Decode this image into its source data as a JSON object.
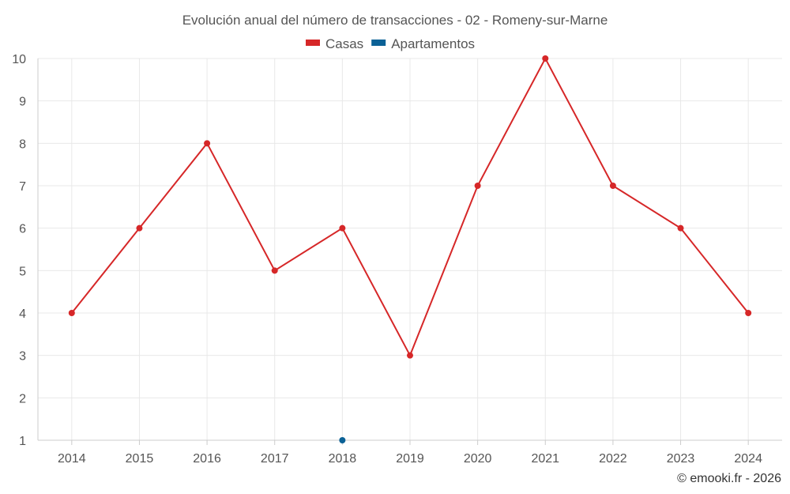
{
  "chart_data": {
    "type": "line",
    "title": "Evolución anual del número de transacciones - 02 - Romeny-sur-Marne",
    "x": [
      "2014",
      "2015",
      "2016",
      "2017",
      "2018",
      "2019",
      "2020",
      "2021",
      "2022",
      "2023",
      "2024"
    ],
    "series": [
      {
        "name": "Casas",
        "color": "#d62728",
        "values": [
          4,
          6,
          8,
          5,
          6,
          3,
          7,
          10,
          7,
          6,
          4
        ]
      },
      {
        "name": "Apartamentos",
        "color": "#0b6196",
        "values": [
          null,
          null,
          null,
          null,
          1,
          null,
          null,
          null,
          null,
          null,
          null
        ]
      }
    ],
    "ylim": [
      1,
      10
    ],
    "yticks": [
      "1",
      "2",
      "3",
      "4",
      "5",
      "6",
      "7",
      "8",
      "9",
      "10"
    ],
    "grid": true,
    "legend_position": "top-center"
  },
  "credit": "© emooki.fr - 2026"
}
